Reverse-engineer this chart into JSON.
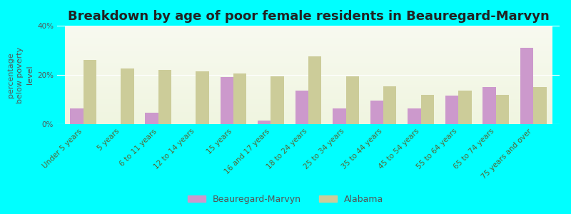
{
  "title": "Breakdown by age of poor female residents in Beauregard-Marvyn",
  "ylabel": "percentage\nbelow poverty\nlevel",
  "categories": [
    "Under 5 years",
    "5 years",
    "6 to 11 years",
    "12 to 14 years",
    "15 years",
    "16 and 17 years",
    "18 to 24 years",
    "25 to 34 years",
    "35 to 44 years",
    "45 to 54 years",
    "55 to 64 years",
    "65 to 74 years",
    "75 years and over"
  ],
  "beauregard_values": [
    6.5,
    0,
    4.5,
    0,
    19.0,
    1.5,
    13.5,
    6.5,
    9.5,
    6.5,
    11.5,
    15.0,
    31.0
  ],
  "alabama_values": [
    26.0,
    22.5,
    22.0,
    21.5,
    20.5,
    19.5,
    27.5,
    19.5,
    15.5,
    12.0,
    13.5,
    12.0,
    15.0
  ],
  "beauregard_color": "#cc99cc",
  "alabama_color": "#cccc99",
  "background_color": "#00ffff",
  "ylim": [
    0,
    40
  ],
  "yticks": [
    0,
    20,
    40
  ],
  "ytick_labels": [
    "0%",
    "20%",
    "40%"
  ],
  "bar_width": 0.35,
  "title_fontsize": 13,
  "ylabel_fontsize": 8,
  "tick_fontsize": 7.5,
  "legend_labels": [
    "Beauregard-Marvyn",
    "Alabama"
  ],
  "legend_fontsize": 9,
  "gradient_bottom": "#f0f5e0",
  "gradient_top": "#f8faf0"
}
